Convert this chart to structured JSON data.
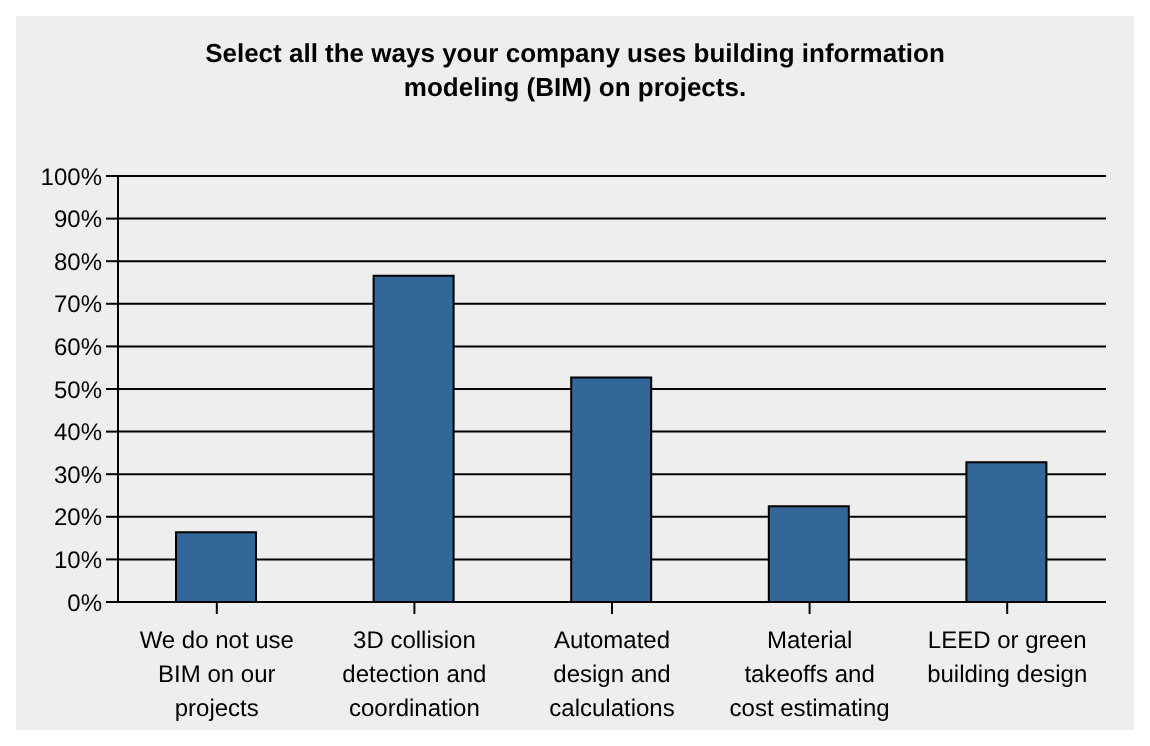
{
  "chart_data": {
    "type": "bar",
    "title": "Select all the ways your company uses building information modeling (BIM) on projects.",
    "categories": [
      "We do not use BIM on our projects",
      "3D collision detection and coordination",
      "Automated design and calculations",
      "Material takeoffs and cost estimating",
      "LEED or green building design"
    ],
    "values": [
      16.4,
      76.6,
      52.7,
      22.5,
      32.8
    ],
    "color": "#336699",
    "ylim": [
      0,
      100
    ],
    "yticks": [
      {
        "value": 0,
        "label": "0%"
      },
      {
        "value": 10,
        "label": "10%"
      },
      {
        "value": 20,
        "label": "20%"
      },
      {
        "value": 30,
        "label": "30%"
      },
      {
        "value": 40,
        "label": "40%"
      },
      {
        "value": 50,
        "label": "50%"
      },
      {
        "value": 60,
        "label": "60%"
      },
      {
        "value": 70,
        "label": "70%"
      },
      {
        "value": 80,
        "label": "80%"
      },
      {
        "value": 90,
        "label": "90%"
      },
      {
        "value": 100,
        "label": "100%"
      }
    ],
    "grid": "y"
  }
}
